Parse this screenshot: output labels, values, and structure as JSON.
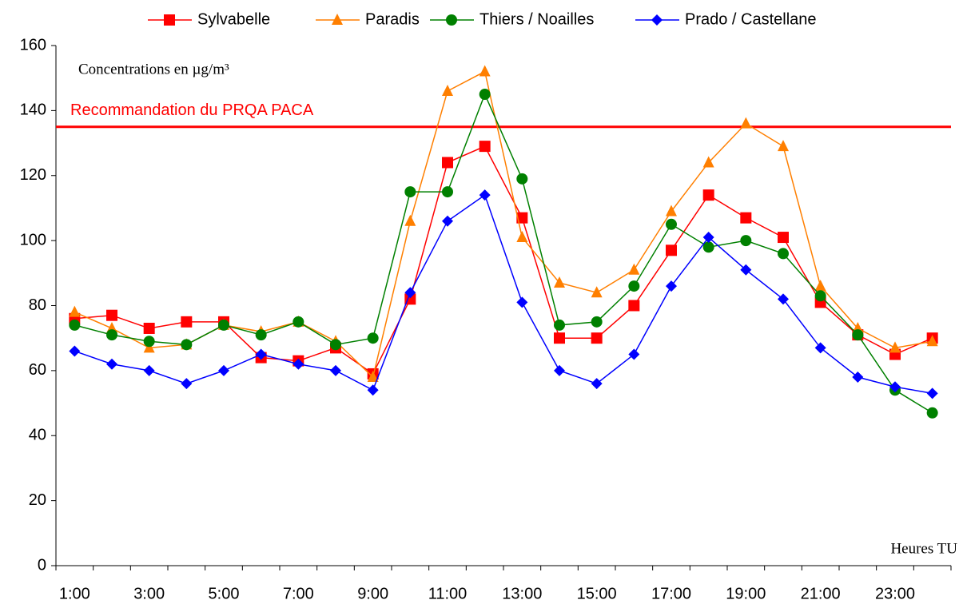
{
  "chart_data": {
    "type": "line",
    "annotation": "Concentrations en µg/m³",
    "x_label": "Heures TU",
    "categories": [
      "1:00",
      null,
      "3:00",
      null,
      "5:00",
      null,
      "7:00",
      null,
      "9:00",
      null,
      "11:00",
      null,
      "13:00",
      null,
      "15:00",
      null,
      "17:00",
      null,
      "19:00",
      null,
      "21:00",
      null,
      "23:00",
      null
    ],
    "series": [
      {
        "name": "Sylvabelle",
        "color": "#ff0000",
        "marker": "square",
        "values": [
          76,
          77,
          73,
          75,
          75,
          64,
          63,
          67,
          59,
          82,
          124,
          129,
          107,
          70,
          70,
          80,
          97,
          114,
          107,
          101,
          81,
          71,
          65,
          70
        ]
      },
      {
        "name": "Paradis",
        "color": "#ff7f00",
        "marker": "triangle",
        "values": [
          78,
          73,
          67,
          68,
          74,
          72,
          75,
          69,
          58,
          106,
          146,
          152,
          101,
          87,
          84,
          91,
          109,
          124,
          136,
          129,
          86,
          73,
          67,
          69
        ]
      },
      {
        "name": "Thiers / Noailles",
        "color": "#008000",
        "marker": "circle",
        "values": [
          74,
          71,
          69,
          68,
          74,
          71,
          75,
          68,
          70,
          115,
          115,
          145,
          119,
          74,
          75,
          86,
          105,
          98,
          100,
          96,
          83,
          71,
          54,
          47
        ]
      },
      {
        "name": "Prado / Castellane",
        "color": "#0000ff",
        "marker": "diamond",
        "values": [
          66,
          62,
          60,
          56,
          60,
          65,
          62,
          60,
          54,
          84,
          106,
          114,
          81,
          60,
          56,
          65,
          86,
          101,
          91,
          82,
          67,
          58,
          55,
          53
        ]
      }
    ],
    "reference_line": {
      "value": 135,
      "label": "Recommandation du PRQA PACA",
      "color": "#ff0000"
    },
    "ylim": [
      0,
      160
    ],
    "yticks": [
      0,
      20,
      40,
      60,
      80,
      100,
      120,
      140,
      160
    ],
    "grid": false,
    "legend": "top"
  }
}
